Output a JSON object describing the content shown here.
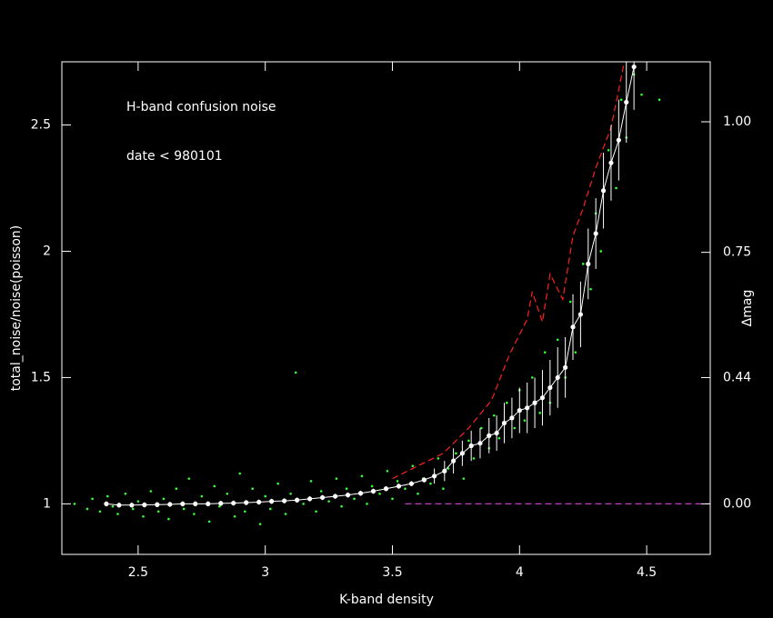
{
  "chart_data": {
    "type": "scatter",
    "annotations": [
      "H-band confusion noise",
      "date < 980101"
    ],
    "xlabel": "K-band density",
    "ylabel": "total_noise/noise(poisson)",
    "y2label": "Δmag",
    "xlim": [
      2.2,
      4.75
    ],
    "ylim": [
      0.8,
      2.75
    ],
    "xticks": [
      2.5,
      3,
      3.5,
      4,
      4.5
    ],
    "yticks": [
      1,
      1.5,
      2,
      2.5
    ],
    "y2scale": "magnitude",
    "y2lim": [
      -0.242,
      1.098
    ],
    "y2ticks": [
      {
        "value": 0,
        "label": "0.00"
      },
      {
        "value": 0.44,
        "label": "0.44"
      },
      {
        "value": 0.75,
        "label": "0.75"
      },
      {
        "value": 1.0,
        "label": "1.00"
      }
    ],
    "series": [
      {
        "type": "scatter",
        "color": "#33ff33",
        "x": [
          2.25,
          2.3,
          2.32,
          2.35,
          2.38,
          2.4,
          2.42,
          2.45,
          2.48,
          2.5,
          2.52,
          2.55,
          2.58,
          2.6,
          2.62,
          2.65,
          2.68,
          2.7,
          2.72,
          2.75,
          2.78,
          2.8,
          2.82,
          2.85,
          2.88,
          2.9,
          2.92,
          2.95,
          2.98,
          3.0,
          3.02,
          3.05,
          3.08,
          3.1,
          3.12,
          3.15,
          3.18,
          3.2,
          3.22,
          3.25,
          3.28,
          3.3,
          3.32,
          3.35,
          3.38,
          3.4,
          3.42,
          3.45,
          3.48,
          3.5,
          3.52,
          3.55,
          3.58,
          3.6,
          3.62,
          3.65,
          3.68,
          3.7,
          3.72,
          3.75,
          3.78,
          3.8,
          3.82,
          3.85,
          3.88,
          3.9,
          3.92,
          3.95,
          3.98,
          4.0,
          4.02,
          4.05,
          4.08,
          4.1,
          4.12,
          4.15,
          4.18,
          4.2,
          4.22,
          4.25,
          4.28,
          4.3,
          4.32,
          4.35,
          4.38,
          4.4,
          4.42,
          4.45,
          4.48,
          4.55
        ],
        "values": [
          1.0,
          0.98,
          1.02,
          0.97,
          1.03,
          0.99,
          0.96,
          1.04,
          0.98,
          1.01,
          0.95,
          1.05,
          0.97,
          1.02,
          0.94,
          1.06,
          0.98,
          1.1,
          0.96,
          1.03,
          0.93,
          1.07,
          0.99,
          1.04,
          0.95,
          1.12,
          0.97,
          1.06,
          0.92,
          1.03,
          0.98,
          1.08,
          0.96,
          1.04,
          1.52,
          1.0,
          1.09,
          0.97,
          1.05,
          1.01,
          1.1,
          0.99,
          1.06,
          1.02,
          1.11,
          1.0,
          1.07,
          1.04,
          1.13,
          1.02,
          1.09,
          1.06,
          1.15,
          1.04,
          1.1,
          1.08,
          1.18,
          1.06,
          1.14,
          1.2,
          1.1,
          1.25,
          1.18,
          1.3,
          1.22,
          1.35,
          1.26,
          1.4,
          1.3,
          1.45,
          1.33,
          1.5,
          1.36,
          1.6,
          1.4,
          1.65,
          1.5,
          1.8,
          1.6,
          1.95,
          1.85,
          2.15,
          2.0,
          2.4,
          2.25,
          2.6,
          2.45,
          2.7,
          2.62,
          2.6
        ]
      },
      {
        "type": "line",
        "color": "#ff2020",
        "dash": true,
        "x": [
          3.5,
          3.7,
          3.8,
          3.89,
          3.96,
          4.03,
          4.05,
          4.09,
          4.12,
          4.17,
          4.21,
          4.25,
          4.3,
          4.36,
          4.41
        ],
        "values": [
          1.1,
          1.2,
          1.3,
          1.41,
          1.59,
          1.73,
          1.84,
          1.72,
          1.91,
          1.81,
          2.06,
          2.17,
          2.33,
          2.49,
          2.74
        ]
      },
      {
        "type": "line",
        "color": "#c040c0",
        "dash": true,
        "x": [
          3.55,
          4.75
        ],
        "values": [
          1,
          1
        ]
      },
      {
        "type": "errorbar",
        "color": "#ffffff",
        "x": [
          2.375,
          2.425,
          2.475,
          2.525,
          2.575,
          2.625,
          2.675,
          2.725,
          2.775,
          2.825,
          2.875,
          2.925,
          2.975,
          3.025,
          3.075,
          3.125,
          3.175,
          3.225,
          3.275,
          3.325,
          3.375,
          3.425,
          3.475,
          3.525,
          3.575,
          3.625,
          3.665,
          3.705,
          3.74,
          3.775,
          3.81,
          3.845,
          3.88,
          3.91,
          3.94,
          3.97,
          4.0,
          4.03,
          4.06,
          4.09,
          4.12,
          4.15,
          4.18,
          4.21,
          4.24,
          4.27,
          4.3,
          4.33,
          4.36,
          4.39,
          4.42,
          4.45
        ],
        "values": [
          1.0,
          0.995,
          0.995,
          0.996,
          0.997,
          0.998,
          1.0,
          1.0,
          1.0,
          1.002,
          1.003,
          1.005,
          1.007,
          1.01,
          1.012,
          1.015,
          1.02,
          1.025,
          1.03,
          1.035,
          1.042,
          1.05,
          1.06,
          1.07,
          1.08,
          1.095,
          1.11,
          1.13,
          1.17,
          1.2,
          1.23,
          1.24,
          1.27,
          1.28,
          1.32,
          1.34,
          1.37,
          1.38,
          1.4,
          1.42,
          1.46,
          1.5,
          1.54,
          1.7,
          1.75,
          1.95,
          2.07,
          2.24,
          2.35,
          2.44,
          2.59,
          2.73
        ],
        "errors": [
          0.01,
          0.01,
          0.01,
          0.01,
          0.01,
          0.01,
          0.01,
          0.01,
          0.01,
          0.01,
          0.01,
          0.01,
          0.01,
          0.01,
          0.01,
          0.01,
          0.01,
          0.01,
          0.01,
          0.01,
          0.01,
          0.01,
          0.01,
          0.01,
          0.01,
          0.01,
          0.03,
          0.04,
          0.05,
          0.05,
          0.06,
          0.06,
          0.07,
          0.07,
          0.08,
          0.08,
          0.09,
          0.1,
          0.1,
          0.11,
          0.11,
          0.12,
          0.12,
          0.13,
          0.13,
          0.14,
          0.14,
          0.15,
          0.15,
          0.16,
          0.16,
          0.17
        ]
      }
    ]
  }
}
